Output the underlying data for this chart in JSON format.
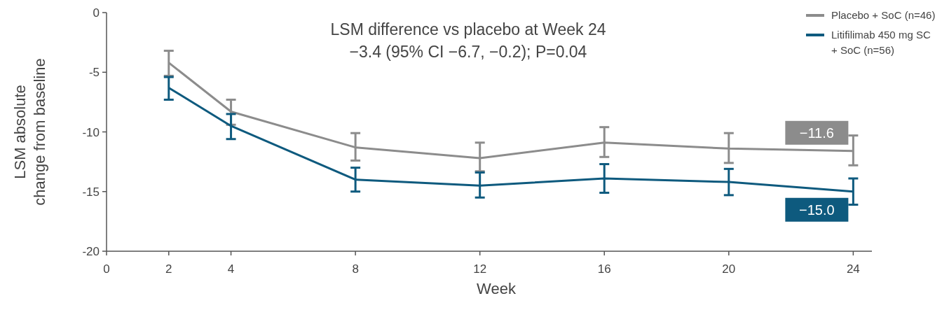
{
  "chart_data": {
    "type": "line",
    "title": "LSM difference vs placebo at Week 24",
    "subtitle": "−3.4 (95% CI −6.7, −0.2); P=0.04",
    "xlabel": "Week",
    "ylabel": "LSM absolute change from baseline",
    "x": [
      2,
      4,
      8,
      12,
      16,
      20,
      24
    ],
    "series": [
      {
        "name": "Placebo + SoC (n=46)",
        "color": "#8c8c8c",
        "values": [
          -4.2,
          -8.3,
          -11.3,
          -12.2,
          -10.9,
          -11.4,
          -11.6
        ],
        "errors": [
          [
            -5.3,
            -3.2
          ],
          [
            -9.4,
            -7.3
          ],
          [
            -12.4,
            -10.1
          ],
          [
            -13.3,
            -10.9
          ],
          [
            -12.1,
            -9.6
          ],
          [
            -12.6,
            -10.1
          ],
          [
            -12.8,
            -10.3
          ]
        ],
        "value_labels": [
          null,
          null,
          null,
          null,
          null,
          null,
          "−11.6"
        ]
      },
      {
        "name": "Litifilimab 450 mg SC + SoC (n=56)",
        "color": "#0e5a7e",
        "values": [
          -6.3,
          -9.5,
          -14.0,
          -14.5,
          -13.9,
          -14.2,
          -15.0
        ],
        "errors": [
          [
            -7.3,
            -5.4
          ],
          [
            -10.6,
            -8.5
          ],
          [
            -15.0,
            -13.0
          ],
          [
            -15.5,
            -13.4
          ],
          [
            -15.1,
            -12.7
          ],
          [
            -15.3,
            -13.1
          ],
          [
            -16.1,
            -13.9
          ]
        ],
        "value_labels": [
          null,
          null,
          null,
          null,
          null,
          null,
          "−15.0"
        ]
      }
    ],
    "xlim": [
      0,
      24.6
    ],
    "xticks": [
      0,
      2,
      4,
      8,
      12,
      16,
      20,
      24
    ],
    "ylim": [
      -20,
      0
    ],
    "yticks": [
      -20,
      -15,
      -10,
      -5,
      0
    ],
    "grid": false,
    "legend": "top right",
    "marker": "none",
    "line_style": "solid"
  }
}
